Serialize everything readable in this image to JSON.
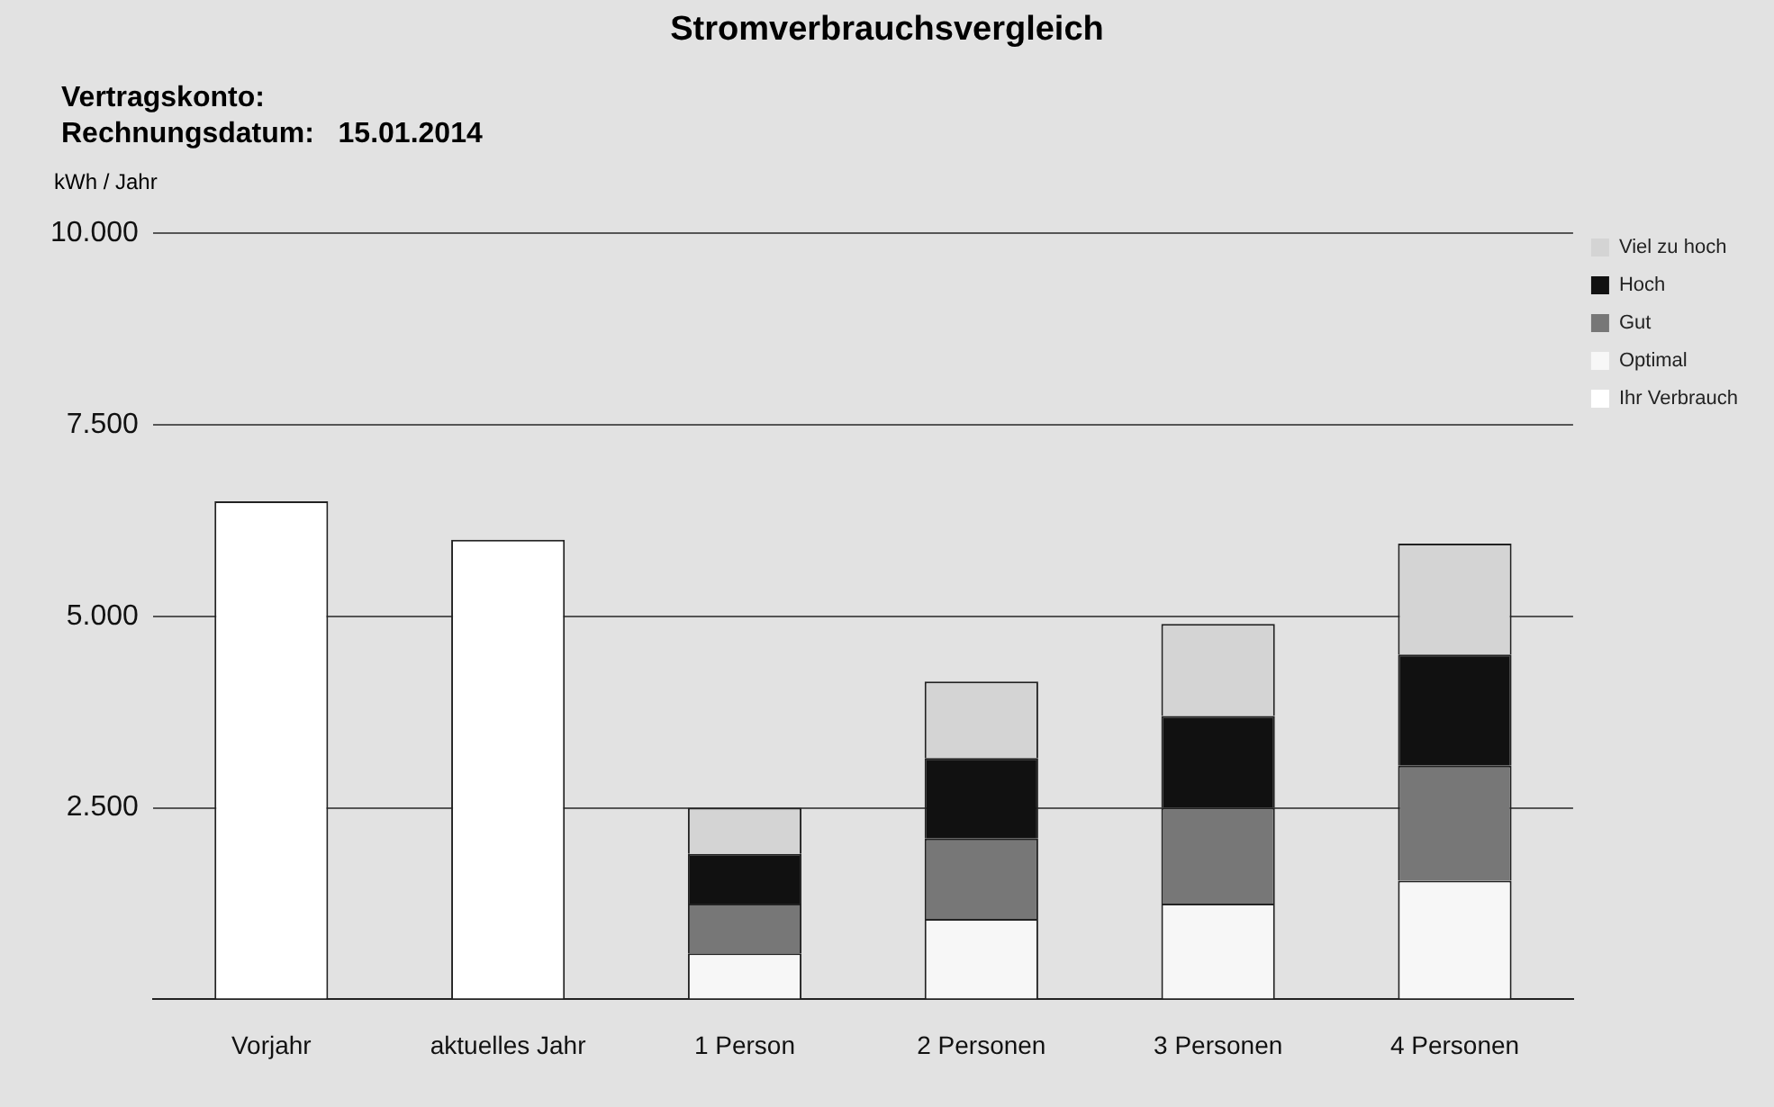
{
  "chart_data": {
    "type": "bar",
    "title": "Stromverbrauchsvergleich",
    "annotations": [
      "Vertragskonto:",
      "Rechnungsdatum:   15.01.2014"
    ],
    "ylabel": "kWh / Jahr",
    "stacked": true,
    "categories": [
      "Vorjahr",
      "aktuelles Jahr",
      "1 Person",
      "2 Personen",
      "3 Personen",
      "4 Personen"
    ],
    "series": [
      {
        "name": "Ihr Verbrauch",
        "color": "#ffffff",
        "values": [
          6500,
          6000,
          null,
          null,
          null,
          null
        ]
      },
      {
        "name": "Optimal",
        "color": "#f7f7f7",
        "values": [
          null,
          null,
          600,
          1050,
          1250,
          1550
        ]
      },
      {
        "name": "Gut",
        "color": "#777777",
        "values": [
          null,
          null,
          650,
          1050,
          1250,
          1500
        ]
      },
      {
        "name": "Hoch",
        "color": "#111111",
        "values": [
          null,
          null,
          650,
          1050,
          1200,
          1450
        ]
      },
      {
        "name": "Viel zu hoch",
        "color": "#d4d4d4",
        "values": [
          null,
          null,
          600,
          1000,
          1200,
          1450
        ]
      }
    ],
    "ylim": [
      0,
      10000
    ],
    "yticks": [
      {
        "value": 0,
        "label": null
      },
      {
        "value": 2500,
        "label": "2.500"
      },
      {
        "value": 5000,
        "label": "5.000"
      },
      {
        "value": 7500,
        "label": "7.500"
      },
      {
        "value": 10000,
        "label": "10.000"
      }
    ],
    "grid": "y",
    "legend": "right"
  }
}
